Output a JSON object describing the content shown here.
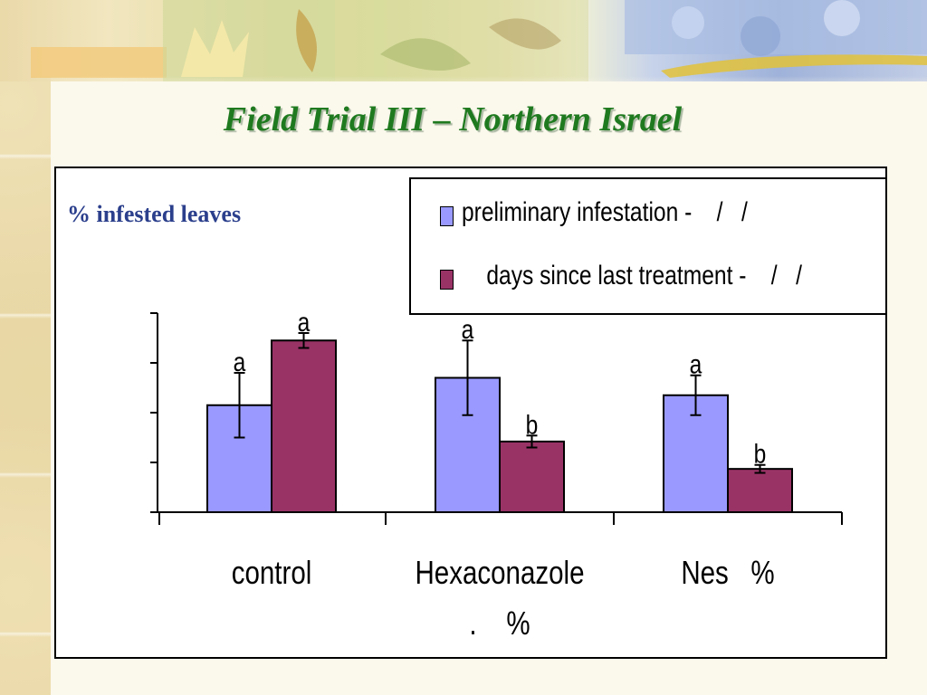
{
  "slide": {
    "title": "Field Trial III – Northern Israel"
  },
  "chart_data": {
    "type": "bar",
    "ylabel": "% infested leaves",
    "categories": [
      "control",
      "Hexaconazole\n.    %",
      "Nes   %"
    ],
    "category_lines": [
      [
        "control"
      ],
      [
        "Hexaconazole",
        ".    %"
      ],
      [
        "Nes   %"
      ]
    ],
    "ylim": [
      0,
      4
    ],
    "y_ticks": [
      0,
      1,
      2,
      3,
      4
    ],
    "grid": false,
    "legend_position": "top-right",
    "series": [
      {
        "name": "preliminary infestation -    /   /",
        "color": "#9999ff",
        "values": [
          2.15,
          2.7,
          2.35
        ],
        "errors": [
          0.65,
          0.75,
          0.4
        ],
        "labels": [
          "a",
          "a",
          "a"
        ]
      },
      {
        "name": "    days since last treatment -    /   /",
        "color": "#993366",
        "values": [
          3.45,
          1.42,
          0.87
        ],
        "errors": [
          0.15,
          0.12,
          0.08
        ],
        "labels": [
          "a",
          "b",
          "b"
        ]
      }
    ]
  }
}
